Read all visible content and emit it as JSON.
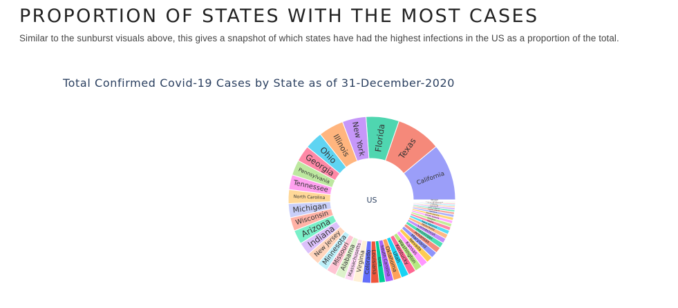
{
  "page": {
    "heading": "PROPORTION OF STATES WITH THE MOST CASES",
    "description": "Similar to the sunburst visuals above, this gives a snapshot of which states have had the highest infections in the US as a proportion of the total."
  },
  "chart_data": {
    "type": "sunburst",
    "title": "Total Confirmed Covid-19 Cases by State as of 31-December-2020",
    "root": "US",
    "series": [
      {
        "name": "California",
        "value": 9.59,
        "color": "#9b9ef9"
      },
      {
        "name": "Texas",
        "value": 7.54,
        "color": "#f5897a"
      },
      {
        "name": "Florida",
        "value": 5.55,
        "color": "#4fd6b0"
      },
      {
        "name": "New York",
        "value": 4.0,
        "color": "#c697f9"
      },
      {
        "name": "Illinois",
        "value": 4.23,
        "color": "#ffb57e"
      },
      {
        "name": "Ohio",
        "value": 3.0,
        "color": "#5fd4f2"
      },
      {
        "name": "Georgia",
        "value": 2.75,
        "color": "#ff88a6"
      },
      {
        "name": "Pennsylvania",
        "value": 2.56,
        "color": "#bde8a0"
      },
      {
        "name": "Tennessee",
        "value": 2.5,
        "color": "#ffa0ef"
      },
      {
        "name": "North Carolina",
        "value": 2.35,
        "color": "#ffd898"
      },
      {
        "name": "Michigan",
        "value": 2.36,
        "color": "#c9cff9"
      },
      {
        "name": "Wisconsin",
        "value": 2.26,
        "color": "#ffb2a6"
      },
      {
        "name": "Arizona",
        "value": 2.36,
        "color": "#7af0c9"
      },
      {
        "name": "Indiana",
        "value": 2.17,
        "color": "#dcc1fb"
      },
      {
        "name": "New Jersey",
        "value": 2.25,
        "color": "#ffd5bd"
      },
      {
        "name": "Minnesota",
        "value": 1.82,
        "color": "#bdeff9"
      },
      {
        "name": "Missouri",
        "value": 1.63,
        "color": "#ffc4d3"
      },
      {
        "name": "Alabama",
        "value": 1.65,
        "color": "#ddf2cb"
      },
      {
        "name": "Massachusetts",
        "value": 1.43,
        "color": "#ffd8f5"
      },
      {
        "name": "Virginia",
        "value": 1.53,
        "color": "#fff0d6"
      },
      {
        "name": "Colorado",
        "value": 1.43,
        "color": "#636efa"
      },
      {
        "name": "Louisiana",
        "value": 1.38,
        "color": "#ef553b"
      },
      {
        "name": "Iowa",
        "value": 1.07,
        "color": "#00cc96"
      },
      {
        "name": "South Carolina",
        "value": 1.38,
        "color": "#ab63fa"
      },
      {
        "name": "Oklahoma",
        "value": 1.38,
        "color": "#ffa15a"
      },
      {
        "name": "Utah",
        "value": 1.3,
        "color": "#19d3f3"
      },
      {
        "name": "Kentucky",
        "value": 1.3,
        "color": "#ff6692"
      },
      {
        "name": "Washington",
        "value": 1.24,
        "color": "#b6e880"
      },
      {
        "name": "Kansas",
        "value": 1.16,
        "color": "#ff97ff"
      },
      {
        "name": "Nevada",
        "value": 1.09,
        "color": "#fecb52"
      },
      {
        "name": "Maryland",
        "value": 1.09,
        "color": "#8e94fb"
      },
      {
        "name": "Arkansas",
        "value": 1.01,
        "color": "#f38b7c"
      },
      {
        "name": "Mississippi",
        "value": 0.93,
        "color": "#4cdfb3"
      },
      {
        "name": "Connecticut",
        "value": 0.86,
        "color": "#c08df9"
      },
      {
        "name": "Nebraska",
        "value": 0.78,
        "color": "#ffb985"
      },
      {
        "name": "New Mexico",
        "value": 0.7,
        "color": "#54dcf4"
      },
      {
        "name": "Idaho",
        "value": 0.62,
        "color": "#ff85a8"
      },
      {
        "name": "Oregon",
        "value": 0.59,
        "color": "#c3ed99"
      },
      {
        "name": "South Dakota",
        "value": 0.56,
        "color": "#ffaaff"
      },
      {
        "name": "North Dakota",
        "value": 0.52,
        "color": "#fed576"
      },
      {
        "name": "Montana",
        "value": 0.47,
        "color": "#aab0fc"
      },
      {
        "name": "Rhode Island",
        "value": 0.42,
        "color": "#f7a79a"
      },
      {
        "name": "West Virginia",
        "value": 0.38,
        "color": "#7ee7c6"
      },
      {
        "name": "Delaware",
        "value": 0.33,
        "color": "#d1adfb"
      },
      {
        "name": "Wyoming",
        "value": 0.29,
        "color": "#ffcda8"
      },
      {
        "name": "Alaska",
        "value": 0.25,
        "color": "#8ce5f7"
      },
      {
        "name": "New Hampshire",
        "value": 0.22,
        "color": "#ffa8c2"
      },
      {
        "name": "District of Columbia",
        "value": 0.19,
        "color": "#d6f2b9"
      },
      {
        "name": "Maine",
        "value": 0.15,
        "color": "#ffc4ff"
      },
      {
        "name": "Hawaii",
        "value": 0.13,
        "color": "#ffe09e"
      },
      {
        "name": "Vermont",
        "value": 0.1,
        "color": "#c7cafc"
      }
    ]
  }
}
